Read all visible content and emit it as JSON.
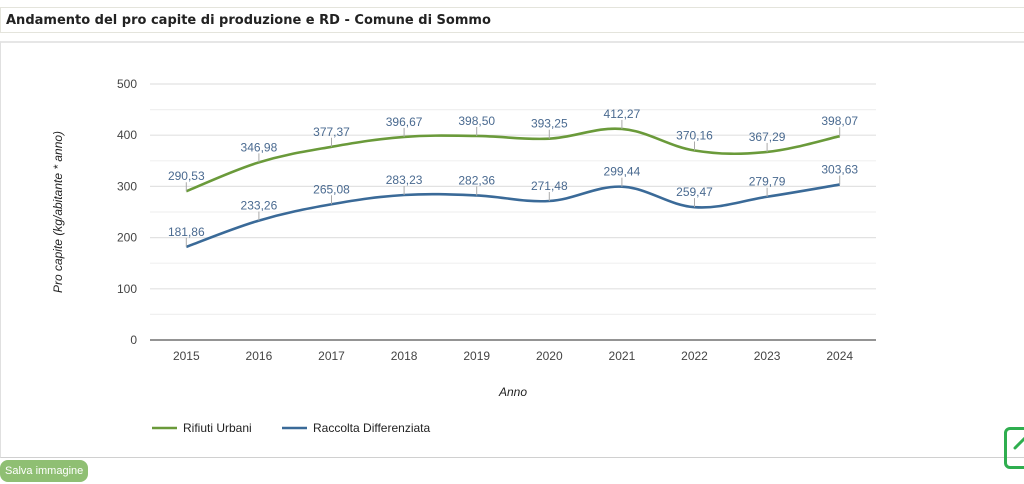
{
  "header": {
    "title": "Andamento del pro capite di produzione e RD - Comune di Sommo"
  },
  "actions": {
    "save_label": "Salva immagine",
    "corner_icon": "edit-square-icon"
  },
  "colors": {
    "rifiuti": "#6a9a3a",
    "raccolta": "#3a6a98",
    "label": "#4a6a90",
    "grid": "#e8e8e8",
    "axis": "#555555",
    "save_bg": "#8fbf73",
    "corner": "#2fae4f"
  },
  "chart_data": {
    "type": "line",
    "title": "",
    "xlabel": "Anno",
    "ylabel": "Pro capite (kg/abitante * anno)",
    "ylim": [
      0,
      500
    ],
    "yticks": [
      "0",
      "100",
      "200",
      "300",
      "400",
      "500"
    ],
    "ytick_values": [
      0,
      100,
      200,
      300,
      400,
      500
    ],
    "grid": true,
    "legend": "bottom-center",
    "categories": [
      "2015",
      "2016",
      "2017",
      "2018",
      "2019",
      "2020",
      "2021",
      "2022",
      "2023",
      "2024"
    ],
    "series": [
      {
        "name": "Rifiuti Urbani",
        "values": [
          290.53,
          346.98,
          377.37,
          396.67,
          398.5,
          393.25,
          412.27,
          370.16,
          367.29,
          398.07
        ],
        "labels": [
          "290,53",
          "346,98",
          "377,37",
          "396,67",
          "398,50",
          "393,25",
          "412,27",
          "370,16",
          "367,29",
          "398,07"
        ]
      },
      {
        "name": "Raccolta Differenziata",
        "values": [
          181.86,
          233.26,
          265.08,
          283.23,
          282.36,
          271.48,
          299.44,
          259.47,
          279.79,
          303.63
        ],
        "labels": [
          "181,86",
          "233,26",
          "265,08",
          "283,23",
          "282,36",
          "271,48",
          "299,44",
          "259,47",
          "279,79",
          "303,63"
        ]
      }
    ]
  }
}
